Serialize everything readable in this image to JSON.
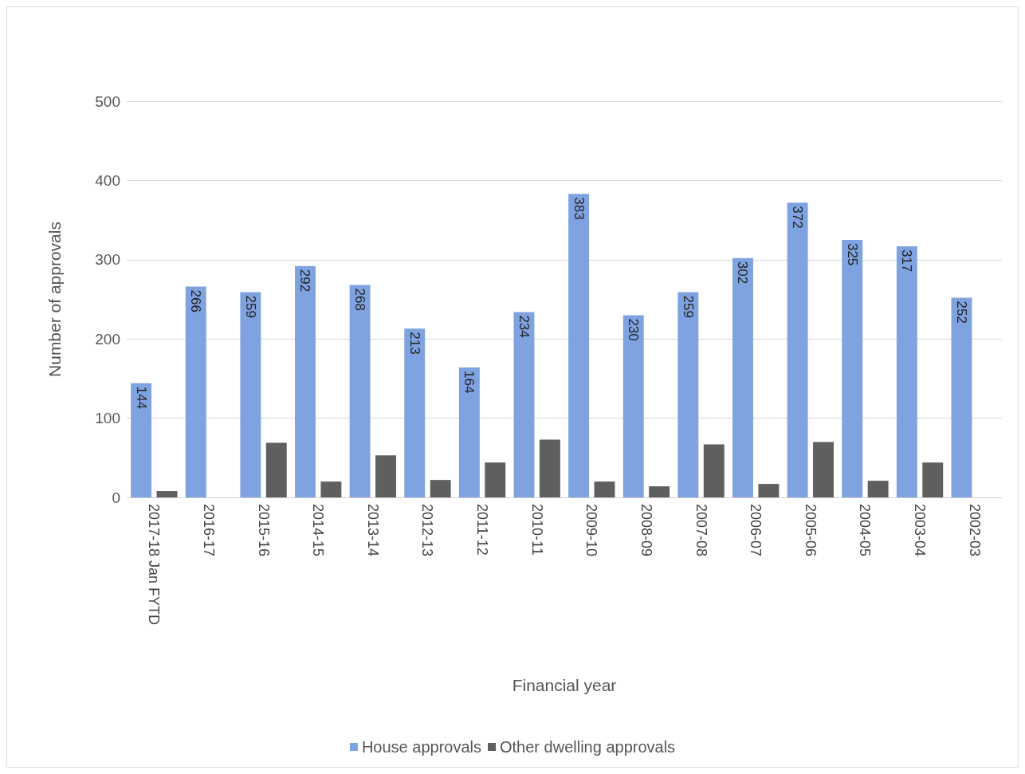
{
  "chart_data": {
    "type": "bar",
    "xlabel": "Financial year",
    "ylabel": "Number of approvals",
    "categories": [
      "2017-18 Jan FYTD",
      "2016-17",
      "2015-16",
      "2014-15",
      "2013-14",
      "2012-13",
      "2011-12",
      "2010-11",
      "2009-10",
      "2008-09",
      "2007-08",
      "2006-07",
      "2005-06",
      "2004-05",
      "2003-04",
      "2002-03"
    ],
    "series": [
      {
        "name": "House approvals",
        "color": "#7fa3e0",
        "values": [
          144,
          266,
          259,
          292,
          268,
          213,
          164,
          234,
          383,
          230,
          259,
          302,
          372,
          325,
          317,
          252
        ],
        "value_labels": [
          "144",
          "266",
          "259",
          "292",
          "268",
          "213",
          "164",
          "234",
          "383",
          "230",
          "259",
          "302",
          "372",
          "325",
          "317",
          "252"
        ]
      },
      {
        "name": "Other dwelling approvals",
        "color": "#5f5f5f",
        "values": [
          8,
          null,
          69,
          20,
          53,
          22,
          44,
          73,
          20,
          14,
          67,
          17,
          70,
          21,
          44,
          null
        ]
      }
    ],
    "ylim": [
      0,
      500
    ],
    "yticks": [
      0,
      100,
      200,
      300,
      400,
      500
    ],
    "grid": "y",
    "legend": "bottom"
  }
}
